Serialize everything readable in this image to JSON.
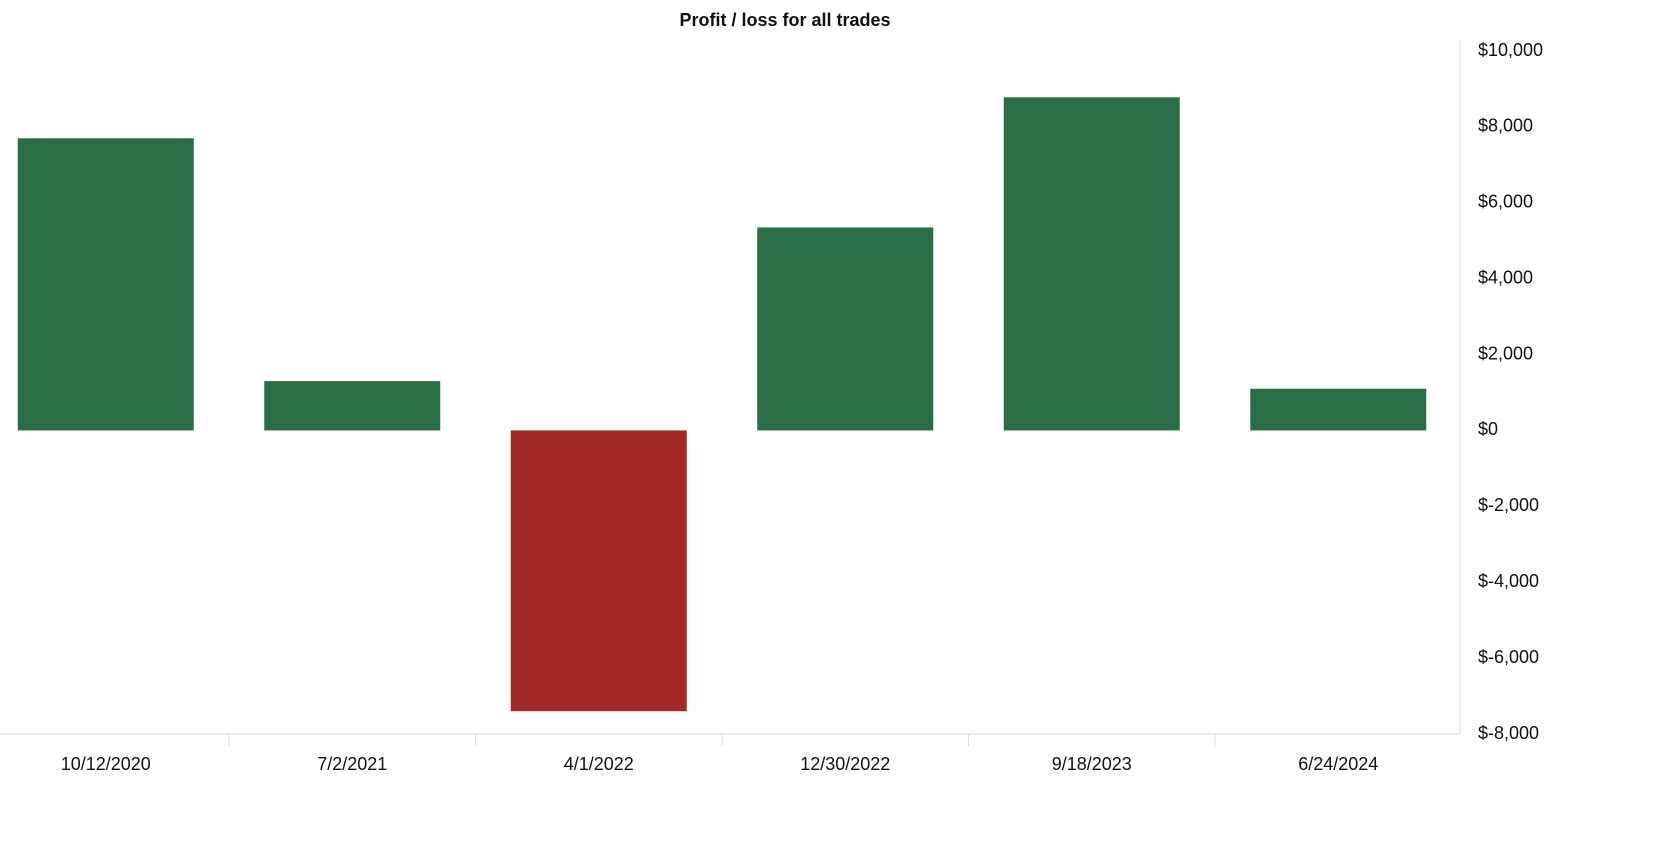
{
  "chart_data": {
    "type": "bar",
    "title": "Profit / loss for all trades",
    "categories": [
      "10/12/2020",
      "7/2/2021",
      "4/1/2022",
      "12/30/2022",
      "9/18/2023",
      "6/24/2024"
    ],
    "values": [
      7700,
      1300,
      -7400,
      5350,
      8780,
      1100
    ],
    "colors": [
      "#2a6e46",
      "#2a6e46",
      "#a32926",
      "#2a6e46",
      "#2a6e46",
      "#2a6e46"
    ],
    "ylim": [
      -8000,
      10000
    ],
    "yticks": [
      {
        "value": -8000,
        "label": "$-8,000"
      },
      {
        "value": -6000,
        "label": "$-6,000"
      },
      {
        "value": -4000,
        "label": "$-4,000"
      },
      {
        "value": -2000,
        "label": "$-2,000"
      },
      {
        "value": 0,
        "label": "$0"
      },
      {
        "value": 2000,
        "label": "$2,000"
      },
      {
        "value": 4000,
        "label": "$4,000"
      },
      {
        "value": 6000,
        "label": "$6,000"
      },
      {
        "value": 8000,
        "label": "$8,000"
      },
      {
        "value": 10000,
        "label": "$10,000"
      }
    ],
    "grid": false
  }
}
